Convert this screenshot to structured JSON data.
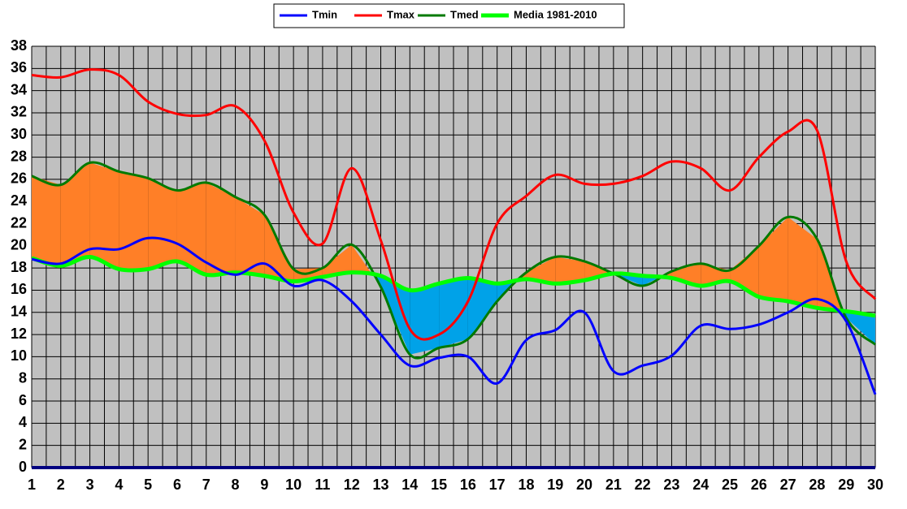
{
  "chart_data": {
    "type": "line",
    "categories": [
      1,
      2,
      3,
      4,
      5,
      6,
      7,
      8,
      9,
      10,
      11,
      12,
      13,
      14,
      15,
      16,
      17,
      18,
      19,
      20,
      21,
      22,
      23,
      24,
      25,
      26,
      27,
      28,
      29,
      30
    ],
    "series": [
      {
        "name": "Tmin",
        "color": "#0000ff",
        "values": [
          18.8,
          18.4,
          19.7,
          19.7,
          20.7,
          20.2,
          18.5,
          17.4,
          18.4,
          16.4,
          16.9,
          15.0,
          12.0,
          9.2,
          9.9,
          10.0,
          7.6,
          11.5,
          12.4,
          14.0,
          8.7,
          9.2,
          10.1,
          12.8,
          12.5,
          12.9,
          14.0,
          15.2,
          13.2,
          6.6
        ]
      },
      {
        "name": "Tmax",
        "color": "#ff0000",
        "values": [
          35.4,
          35.2,
          35.9,
          35.4,
          33.0,
          31.9,
          31.8,
          32.6,
          29.5,
          23.0,
          20.2,
          27.0,
          20.5,
          12.5,
          12.0,
          15.0,
          22.0,
          24.5,
          26.4,
          25.6,
          25.6,
          26.3,
          27.6,
          27.0,
          25.0,
          28.0,
          30.3,
          30.4,
          18.6,
          15.2
        ]
      },
      {
        "name": "Tmed",
        "color": "#007a00",
        "values": [
          26.3,
          25.5,
          27.5,
          26.7,
          26.1,
          25.0,
          25.7,
          24.4,
          22.8,
          17.9,
          18.0,
          20.1,
          16.3,
          10.2,
          10.8,
          11.6,
          15.0,
          17.6,
          19.0,
          18.6,
          17.5,
          16.4,
          17.7,
          18.4,
          17.8,
          20.0,
          22.6,
          20.6,
          13.5,
          11.1
        ]
      },
      {
        "name": "Media 1981-2010",
        "color": "#00ff00",
        "values": [
          18.9,
          18.2,
          19.0,
          17.9,
          17.9,
          18.6,
          17.4,
          17.6,
          17.3,
          16.8,
          17.2,
          17.6,
          17.3,
          16.0,
          16.6,
          17.1,
          16.6,
          17.0,
          16.6,
          16.9,
          17.5,
          17.3,
          17.1,
          16.4,
          16.8,
          15.4,
          15.0,
          14.4,
          14.1,
          13.7
        ]
      }
    ],
    "above_color": "#ff7f27",
    "below_color": "#00a2e8",
    "background": "#c0c0c0",
    "ylim": [
      0,
      38
    ],
    "yticks": [
      0,
      2,
      4,
      6,
      8,
      10,
      12,
      14,
      16,
      18,
      20,
      22,
      24,
      26,
      28,
      30,
      32,
      34,
      36,
      38
    ],
    "grid": true
  }
}
